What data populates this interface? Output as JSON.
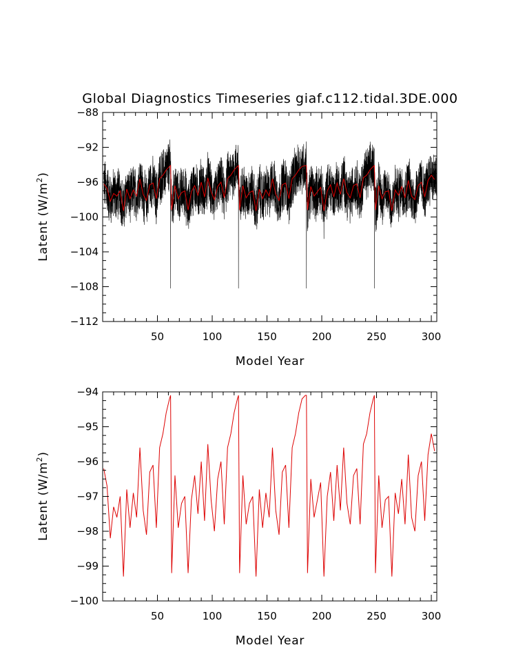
{
  "chart_data": [
    {
      "type": "line",
      "title": "Global Diagnostics Timeseries giaf.c112.tidal.3DE.000",
      "xlabel": "Model Year",
      "ylabel": "Latent (W/m",
      "ylabel_sup": "2",
      "ylabel_tail": ")",
      "xlim": [
        0,
        305
      ],
      "ylim": [
        -112,
        -88
      ],
      "xticks": [
        "50",
        "100",
        "150",
        "200",
        "250",
        "300"
      ],
      "yticks": [
        "-88",
        "-92",
        "-96",
        "-100",
        "-104",
        "-108",
        "-112"
      ],
      "grid": false,
      "series": [
        {
          "color": "#000000",
          "kind": "monthly",
          "mean": -97.0,
          "spread": 2.6,
          "spike_years": [
            62,
            124,
            186,
            248
          ],
          "spike_value": -108.2
        },
        {
          "color": "#dd0000",
          "kind": "annual-mean",
          "x": [
            1,
            4,
            7,
            10,
            13,
            16,
            19,
            22,
            25,
            28,
            31,
            34,
            37,
            40,
            43,
            46,
            49,
            52,
            55,
            58,
            61,
            62,
            63,
            66,
            69,
            72,
            75,
            78,
            81,
            84,
            87,
            90,
            93,
            96,
            99,
            102,
            105,
            108,
            111,
            114,
            117,
            120,
            123,
            124,
            125,
            128,
            131,
            134,
            137,
            140,
            143,
            146,
            149,
            152,
            155,
            158,
            161,
            164,
            167,
            170,
            173,
            176,
            179,
            182,
            185,
            186,
            187,
            190,
            193,
            196,
            199,
            202,
            205,
            208,
            211,
            214,
            217,
            220,
            223,
            226,
            229,
            232,
            235,
            238,
            241,
            244,
            247,
            248,
            249,
            252,
            255,
            258,
            261,
            264,
            267,
            270,
            273,
            276,
            279,
            282,
            285,
            288,
            291,
            294,
            297,
            300,
            303
          ],
          "y": [
            -96.2,
            -96.7,
            -98.2,
            -97.3,
            -97.6,
            -97.0,
            -99.3,
            -96.8,
            -97.9,
            -96.9,
            -97.6,
            -95.6,
            -97.4,
            -98.1,
            -96.3,
            -96.1,
            -97.9,
            -95.6,
            -95.2,
            -94.6,
            -94.2,
            -94.1,
            -99.2,
            -96.4,
            -97.9,
            -97.2,
            -97.0,
            -99.2,
            -97.1,
            -96.4,
            -97.5,
            -96.0,
            -97.7,
            -95.5,
            -97.1,
            -98.0,
            -96.5,
            -96.0,
            -97.8,
            -95.6,
            -95.2,
            -94.6,
            -94.2,
            -94.1,
            -99.2,
            -96.4,
            -97.8,
            -97.2,
            -97.0,
            -99.3,
            -96.8,
            -97.9,
            -96.9,
            -97.6,
            -95.6,
            -97.4,
            -98.1,
            -96.3,
            -96.1,
            -97.9,
            -95.6,
            -95.2,
            -94.6,
            -94.2,
            -94.1,
            -94.1,
            -99.2,
            -96.5,
            -97.6,
            -97.1,
            -96.6,
            -99.3,
            -97.0,
            -96.3,
            -97.7,
            -96.1,
            -97.4,
            -95.6,
            -97.2,
            -97.8,
            -96.4,
            -96.2,
            -97.8,
            -95.5,
            -95.2,
            -94.6,
            -94.2,
            -94.1,
            -99.2,
            -96.4,
            -97.9,
            -97.1,
            -97.0,
            -99.3,
            -96.9,
            -97.5,
            -96.5,
            -97.8,
            -95.8,
            -97.6,
            -98.0,
            -96.4,
            -96.0,
            -97.7,
            -95.8,
            -95.2,
            -95.7
          ]
        }
      ]
    },
    {
      "type": "line",
      "xlabel": "Model Year",
      "ylabel": "Latent (W/m",
      "ylabel_sup": "2",
      "ylabel_tail": ")",
      "xlim": [
        0,
        305
      ],
      "ylim": [
        -100,
        -94
      ],
      "xticks": [
        "50",
        "100",
        "150",
        "200",
        "250",
        "300"
      ],
      "yticks": [
        "-94",
        "-95",
        "-96",
        "-97",
        "-98",
        "-99",
        "-100"
      ],
      "grid": false,
      "series": [
        {
          "color": "#dd0000",
          "kind": "annual-mean",
          "same_as": "panel-1-red"
        }
      ]
    }
  ]
}
